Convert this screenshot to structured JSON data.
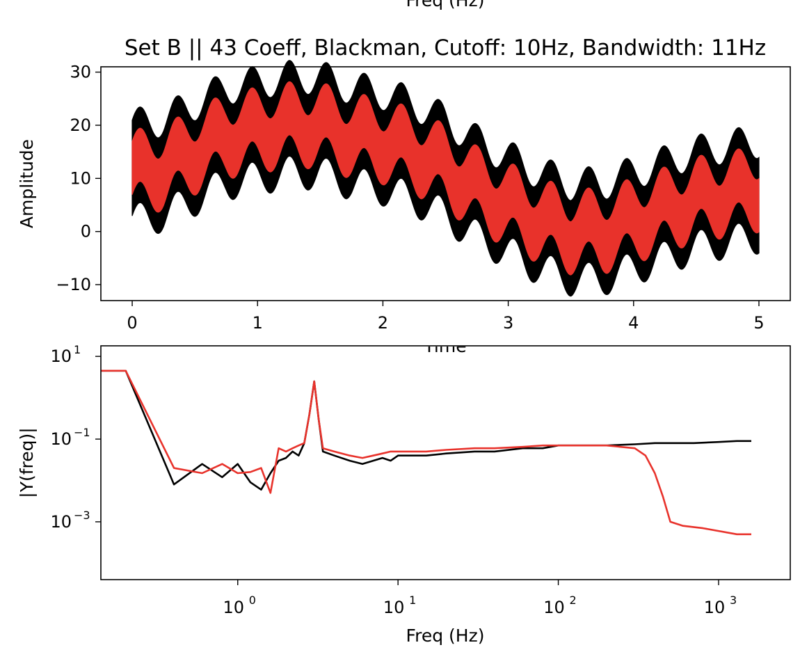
{
  "figure": {
    "top_partial_label": "Freq (Hz)"
  },
  "chart_data": [
    {
      "type": "line",
      "title": "Set B || 43 Coeff, Blackman, Cutoff: 10Hz, Bandwidth: 11Hz",
      "xlabel": "Time",
      "ylabel": "Amplitude",
      "xlim": [
        -0.25,
        5.25
      ],
      "ylim": [
        -13,
        31
      ],
      "xticks": [
        0,
        1,
        2,
        3,
        4,
        5
      ],
      "yticks": [
        -10,
        0,
        10,
        20,
        30
      ],
      "xtick_labels": [
        "0",
        "1",
        "2",
        "3",
        "4",
        "5"
      ],
      "ytick_labels": [
        "−10",
        "0",
        "10",
        "20",
        "30"
      ],
      "grid": false,
      "series": [
        {
          "color": "#000000",
          "description_values": {
            "x": [
              0,
              0.25,
              0.5,
              0.75,
              1.0,
              1.25,
              1.5,
              1.75,
              2.0,
              2.25,
              2.5,
              2.75,
              3.0,
              3.25,
              3.5,
              3.75,
              4.0,
              4.25,
              4.5,
              4.75,
              5.0
            ],
            "y_center": [
              11,
              12,
              15,
              18,
              19,
              20,
              20,
              18,
              17,
              15,
              12,
              8,
              5,
              2,
              0,
              0,
              2,
              4,
              6,
              7,
              8
            ],
            "y_halfwidth": 9
          }
        },
        {
          "color": "#e8322b",
          "description_values": {
            "x": [
              0,
              0.25,
              0.5,
              0.75,
              1.0,
              1.25,
              1.5,
              1.75,
              2.0,
              2.25,
              2.5,
              2.75,
              3.0,
              3.25,
              3.5,
              3.75,
              4.0,
              4.25,
              4.5,
              4.75,
              5.0
            ],
            "y_center": [
              11,
              12,
              15,
              18,
              19,
              20,
              20,
              18,
              17,
              15,
              12,
              8,
              5,
              2,
              0,
              0,
              2,
              4,
              6,
              7,
              8
            ],
            "y_halfwidth": 5
          }
        }
      ]
    },
    {
      "type": "line",
      "title": "",
      "xlabel": "Freq (Hz)",
      "ylabel": "|Y(freq)|",
      "xscale": "log",
      "yscale": "log",
      "xlim": [
        0.14,
        2800
      ],
      "ylim": [
        4e-05,
        18
      ],
      "xticks": [
        1,
        10,
        100,
        1000
      ],
      "xtick_labels": [
        "10",
        "10",
        "10",
        "10"
      ],
      "xtick_exponents": [
        "0",
        "1",
        "2",
        "3"
      ],
      "yticks": [
        0.001,
        0.1,
        10
      ],
      "ytick_labels": [
        "10",
        "10",
        "10"
      ],
      "ytick_exponents": [
        "−3",
        "−1",
        "1"
      ],
      "grid": false,
      "series": [
        {
          "color": "#000000",
          "x": [
            0.14,
            0.2,
            0.4,
            0.6,
            0.8,
            1.0,
            1.2,
            1.4,
            1.6,
            1.8,
            2.0,
            2.2,
            2.4,
            2.6,
            2.8,
            3.0,
            3.2,
            3.4,
            4,
            5,
            6,
            7,
            8,
            9,
            10,
            15,
            20,
            30,
            40,
            60,
            80,
            100,
            150,
            200,
            300,
            400,
            500,
            700,
            1000,
            1300,
            1600
          ],
          "y": [
            4.5,
            4.5,
            0.008,
            0.025,
            0.012,
            0.025,
            0.009,
            0.006,
            0.015,
            0.03,
            0.035,
            0.05,
            0.04,
            0.08,
            0.4,
            2.5,
            0.3,
            0.05,
            0.04,
            0.03,
            0.025,
            0.03,
            0.035,
            0.03,
            0.04,
            0.04,
            0.045,
            0.05,
            0.05,
            0.06,
            0.06,
            0.07,
            0.07,
            0.07,
            0.075,
            0.08,
            0.08,
            0.08,
            0.085,
            0.09,
            0.09
          ]
        },
        {
          "color": "#e8322b",
          "x": [
            0.14,
            0.2,
            0.4,
            0.6,
            0.8,
            1.0,
            1.2,
            1.4,
            1.6,
            1.8,
            2.0,
            2.2,
            2.4,
            2.6,
            2.8,
            3.0,
            3.2,
            3.4,
            4,
            5,
            6,
            7,
            8,
            9,
            10,
            15,
            20,
            30,
            40,
            60,
            80,
            100,
            150,
            200,
            300,
            350,
            400,
            450,
            500,
            600,
            800,
            1000,
            1300,
            1600
          ],
          "y": [
            4.5,
            4.5,
            0.02,
            0.015,
            0.025,
            0.015,
            0.016,
            0.02,
            0.005,
            0.06,
            0.05,
            0.06,
            0.07,
            0.08,
            0.4,
            2.5,
            0.3,
            0.06,
            0.05,
            0.04,
            0.035,
            0.04,
            0.045,
            0.05,
            0.05,
            0.05,
            0.055,
            0.06,
            0.06,
            0.065,
            0.07,
            0.07,
            0.07,
            0.07,
            0.06,
            0.04,
            0.015,
            0.004,
            0.001,
            0.0008,
            0.0007,
            0.0006,
            0.0005,
            0.0005
          ]
        }
      ]
    }
  ]
}
